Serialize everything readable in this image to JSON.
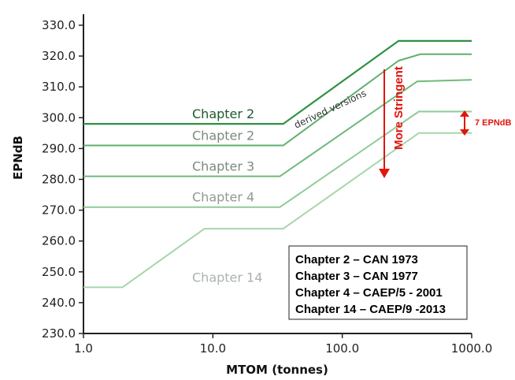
{
  "chart_data": {
    "type": "line",
    "xscale": "log",
    "xlim": [
      1.0,
      1000.0
    ],
    "ylim": [
      230.0,
      330.0
    ],
    "xlabel": "MTOM (tonnes)",
    "ylabel": "EPNdB",
    "xticks": [
      "1.0",
      "10.0",
      "100.0",
      "1000.0"
    ],
    "yticks": [
      "230.0",
      "240.0",
      "250.0",
      "260.0",
      "270.0",
      "280.0",
      "290.0",
      "300.0",
      "310.0",
      "320.0",
      "330.0"
    ],
    "grid": false,
    "series": [
      {
        "name": "Chapter 2",
        "color": "#2e9145",
        "width": 2.2,
        "points": [
          [
            1.0,
            298
          ],
          [
            35,
            298
          ],
          [
            272,
            324.9
          ],
          [
            1000,
            324.9
          ]
        ]
      },
      {
        "name": "Chapter 2",
        "color": "#5fae6d",
        "width": 2,
        "points": [
          [
            1.0,
            291
          ],
          [
            35,
            291
          ],
          [
            272,
            318.5
          ],
          [
            400,
            320.6
          ],
          [
            1000,
            320.6
          ]
        ]
      },
      {
        "name": "Chapter 3",
        "color": "#6fba7c",
        "width": 2,
        "points": [
          [
            1.0,
            281
          ],
          [
            33,
            281
          ],
          [
            380,
            311.8
          ],
          [
            1000,
            312.3
          ]
        ]
      },
      {
        "name": "Chapter 4",
        "color": "#8fca97",
        "width": 2,
        "points": [
          [
            1.0,
            271
          ],
          [
            33,
            271
          ],
          [
            390,
            302
          ],
          [
            1000,
            302
          ]
        ]
      },
      {
        "name": "Chapter 14",
        "color": "#a6d6ab",
        "width": 2,
        "points": [
          [
            1.0,
            245
          ],
          [
            2.0,
            245
          ],
          [
            8.6,
            264
          ],
          [
            35,
            264
          ],
          [
            390,
            295
          ],
          [
            1000,
            295
          ]
        ]
      }
    ],
    "annotations": {
      "derived": "derived versions",
      "stringent": "More Stringent",
      "epndb": "7 EPNdB"
    },
    "legend_lines": [
      "Chapter 2 – CAN 1973",
      "Chapter 3 – CAN 1977",
      "Chapter 4 – CAEP/5 - 2001",
      "Chapter 14 – CAEP/9 -2013"
    ]
  }
}
